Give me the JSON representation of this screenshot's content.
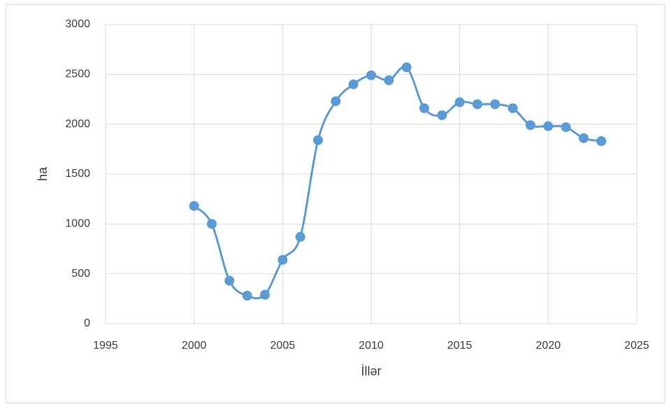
{
  "chart_data": {
    "type": "line",
    "x_label": "İllər",
    "y_label": "ha",
    "x": [
      2000,
      2001,
      2002,
      2003,
      2004,
      2005,
      2006,
      2007,
      2008,
      2009,
      2010,
      2011,
      2012,
      2013,
      2014,
      2015,
      2016,
      2017,
      2018,
      2019,
      2020,
      2021,
      2022,
      2023
    ],
    "series": [
      {
        "name": "ha",
        "color": "#5b9bd5",
        "values": [
          1180,
          1000,
          430,
          280,
          290,
          640,
          870,
          1840,
          2230,
          2400,
          2490,
          2440,
          2570,
          2160,
          2090,
          2220,
          2200,
          2200,
          2160,
          1990,
          1980,
          1970,
          1860,
          1830
        ]
      }
    ],
    "xlim": [
      1995,
      2025
    ],
    "xticks": [
      1995,
      2000,
      2005,
      2010,
      2015,
      2020,
      2025
    ],
    "ylim": [
      0,
      3000
    ],
    "yticks": [
      0,
      500,
      1000,
      1500,
      2000,
      2500,
      3000
    ],
    "grid": true,
    "smooth": true,
    "markers": true
  }
}
